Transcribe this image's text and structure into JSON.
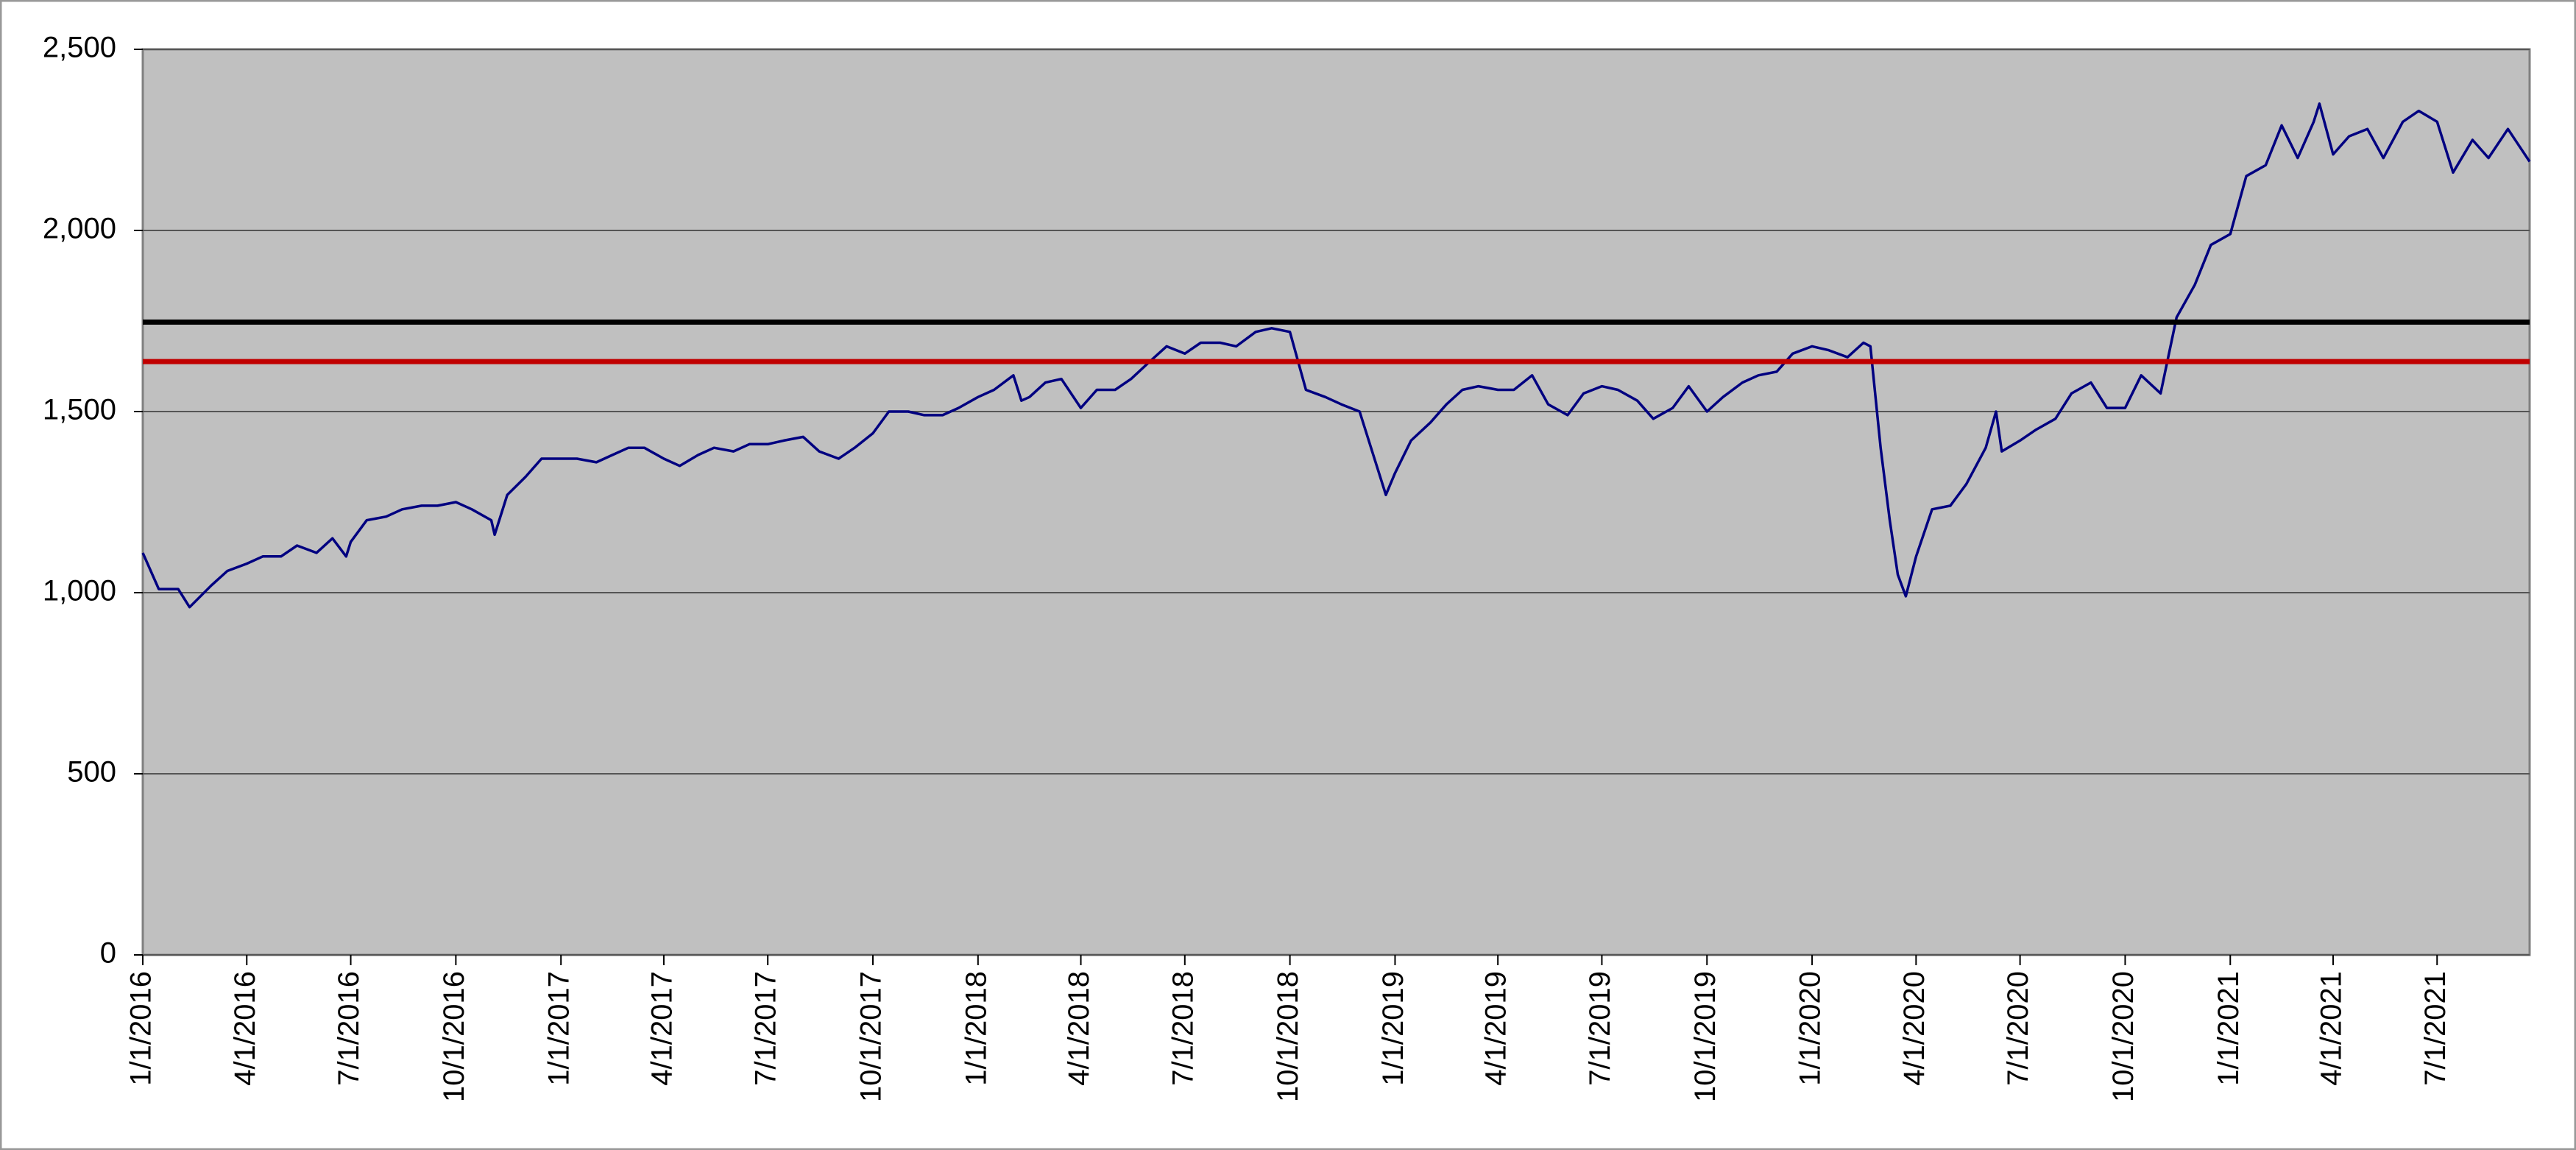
{
  "chart_data": {
    "type": "line",
    "x": [
      "1/1/2016",
      "1/15/2016",
      "2/1/2016",
      "2/11/2016",
      "3/1/2016",
      "3/15/2016",
      "4/1/2016",
      "4/15/2016",
      "5/1/2016",
      "5/15/2016",
      "6/1/2016",
      "6/15/2016",
      "6/27/2016",
      "7/1/2016",
      "7/15/2016",
      "8/1/2016",
      "8/15/2016",
      "9/1/2016",
      "9/15/2016",
      "10/1/2016",
      "10/15/2016",
      "11/1/2016",
      "11/4/2016",
      "11/15/2016",
      "12/1/2016",
      "12/15/2016",
      "1/1/2017",
      "1/15/2017",
      "2/1/2017",
      "2/15/2017",
      "3/1/2017",
      "3/15/2017",
      "4/1/2017",
      "4/15/2017",
      "5/1/2017",
      "5/15/2017",
      "6/1/2017",
      "6/15/2017",
      "7/1/2017",
      "7/15/2017",
      "8/1/2017",
      "8/15/2017",
      "9/1/2017",
      "9/15/2017",
      "10/1/2017",
      "10/15/2017",
      "11/1/2017",
      "11/15/2017",
      "12/1/2017",
      "12/15/2017",
      "1/1/2018",
      "1/15/2018",
      "2/1/2018",
      "2/8/2018",
      "2/15/2018",
      "3/1/2018",
      "3/15/2018",
      "4/1/2018",
      "4/15/2018",
      "5/1/2018",
      "5/15/2018",
      "6/1/2018",
      "6/15/2018",
      "7/1/2018",
      "7/15/2018",
      "8/1/2018",
      "8/15/2018",
      "9/1/2018",
      "9/15/2018",
      "10/1/2018",
      "10/15/2018",
      "11/1/2018",
      "11/15/2018",
      "12/1/2018",
      "12/24/2018",
      "1/1/2019",
      "1/15/2019",
      "2/1/2019",
      "2/15/2019",
      "3/1/2019",
      "3/15/2019",
      "4/1/2019",
      "4/15/2019",
      "5/1/2019",
      "5/15/2019",
      "6/1/2019",
      "6/15/2019",
      "7/1/2019",
      "7/15/2019",
      "8/1/2019",
      "8/15/2019",
      "9/1/2019",
      "9/15/2019",
      "10/1/2019",
      "10/15/2019",
      "11/1/2019",
      "11/15/2019",
      "12/1/2019",
      "12/15/2019",
      "1/1/2020",
      "1/15/2020",
      "2/1/2020",
      "2/15/2020",
      "2/21/2020",
      "3/1/2020",
      "3/9/2020",
      "3/16/2020",
      "3/23/2020",
      "4/1/2020",
      "4/15/2020",
      "5/1/2020",
      "5/15/2020",
      "6/1/2020",
      "6/10/2020",
      "6/15/2020",
      "7/1/2020",
      "7/15/2020",
      "8/1/2020",
      "8/15/2020",
      "9/1/2020",
      "9/15/2020",
      "10/1/2020",
      "10/15/2020",
      "11/1/2020",
      "11/15/2020",
      "12/1/2020",
      "12/15/2020",
      "1/1/2021",
      "1/15/2021",
      "2/1/2021",
      "2/15/2021",
      "3/1/2021",
      "3/15/2021",
      "3/20/2021",
      "4/1/2021",
      "4/15/2021",
      "5/1/2021",
      "5/15/2021",
      "6/1/2021",
      "6/15/2021",
      "7/1/2021",
      "7/15/2021",
      "8/1/2021",
      "8/15/2021",
      "9/1/2021",
      "9/20/2021"
    ],
    "values": [
      1110,
      1010,
      1010,
      960,
      1020,
      1060,
      1080,
      1100,
      1100,
      1130,
      1110,
      1150,
      1100,
      1140,
      1200,
      1210,
      1230,
      1240,
      1240,
      1250,
      1230,
      1200,
      1160,
      1270,
      1320,
      1370,
      1370,
      1370,
      1360,
      1380,
      1400,
      1400,
      1370,
      1350,
      1380,
      1400,
      1390,
      1410,
      1410,
      1420,
      1430,
      1390,
      1370,
      1400,
      1440,
      1500,
      1500,
      1490,
      1490,
      1510,
      1540,
      1560,
      1600,
      1530,
      1540,
      1580,
      1590,
      1510,
      1560,
      1560,
      1590,
      1640,
      1680,
      1660,
      1690,
      1690,
      1680,
      1720,
      1730,
      1720,
      1560,
      1540,
      1520,
      1500,
      1270,
      1330,
      1420,
      1470,
      1520,
      1560,
      1570,
      1560,
      1560,
      1600,
      1520,
      1490,
      1550,
      1570,
      1560,
      1530,
      1480,
      1510,
      1570,
      1500,
      1540,
      1580,
      1600,
      1610,
      1660,
      1680,
      1670,
      1650,
      1690,
      1680,
      1400,
      1200,
      1050,
      990,
      1100,
      1230,
      1240,
      1300,
      1400,
      1500,
      1390,
      1420,
      1450,
      1480,
      1550,
      1580,
      1510,
      1510,
      1600,
      1550,
      1760,
      1850,
      1960,
      1990,
      2150,
      2180,
      2290,
      2200,
      2300,
      2350,
      2210,
      2260,
      2280,
      2200,
      2300,
      2330,
      2300,
      2160,
      2250,
      2200,
      2280,
      2190
    ],
    "color": "#000080",
    "reference_lines": [
      {
        "value": 1747,
        "color": "#000000"
      },
      {
        "value": 1638,
        "color": "#c00000"
      }
    ],
    "xlim": [
      "1/1/2016",
      "9/20/2021"
    ],
    "xticks": [
      "1/1/2016",
      "4/1/2016",
      "7/1/2016",
      "10/1/2016",
      "1/1/2017",
      "4/1/2017",
      "7/1/2017",
      "10/1/2017",
      "1/1/2018",
      "4/1/2018",
      "7/1/2018",
      "10/1/2018",
      "1/1/2019",
      "4/1/2019",
      "7/1/2019",
      "10/1/2019",
      "1/1/2020",
      "4/1/2020",
      "7/1/2020",
      "10/1/2020",
      "1/1/2021",
      "4/1/2021",
      "7/1/2021"
    ],
    "ylim": [
      0,
      2500
    ],
    "yticks": [
      0,
      {
        "value": 500,
        "label": "500"
      },
      {
        "value": 1000,
        "label": "1,000"
      },
      {
        "value": 1500,
        "label": "1,500"
      },
      {
        "value": 2000,
        "label": "2,000"
      },
      {
        "value": 2500,
        "label": "2,500"
      }
    ],
    "grid": true
  }
}
